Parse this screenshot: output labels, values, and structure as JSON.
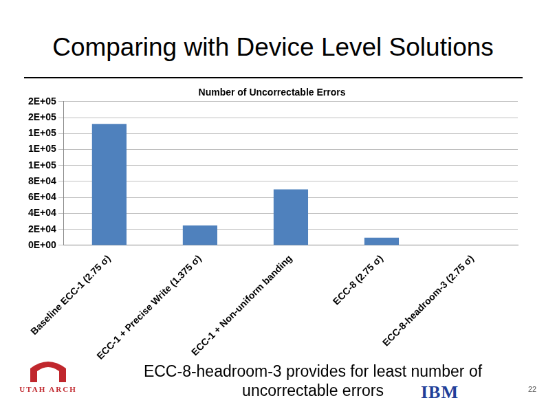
{
  "slide_title": "Comparing with Device Level Solutions",
  "caption": "ECC-8-headroom-3 provides for least number of uncorrectable errors",
  "page_number": "22",
  "logos": [
    "UTAH ARCH",
    "IBM"
  ],
  "chart_data": {
    "type": "bar",
    "title": "Number of Uncorrectable Errors",
    "categories": [
      "Baseline ECC-1 (2.75 σ)",
      "ECC-1 + Precise Write (1.375 σ)",
      "ECC-1 + Non-uniform banding",
      "ECC-8 (2.75 σ)",
      "ECC-8-headroom-3 (2.75 σ)"
    ],
    "values": [
      152000,
      25000,
      70000,
      9600,
      0
    ],
    "color": "#4f81bd",
    "ylim": [
      0,
      180000
    ],
    "yticks": [
      {
        "value": 0,
        "label": "0E+00"
      },
      {
        "value": 20000,
        "label": "2E+04"
      },
      {
        "value": 40000,
        "label": "4E+04"
      },
      {
        "value": 60000,
        "label": "6E+04"
      },
      {
        "value": 80000,
        "label": "8E+04"
      },
      {
        "value": 100000,
        "label": "1E+05"
      },
      {
        "value": 120000,
        "label": "1E+05"
      },
      {
        "value": 140000,
        "label": "1E+05"
      },
      {
        "value": 160000,
        "label": "2E+05"
      },
      {
        "value": 180000,
        "label": "2E+05"
      }
    ],
    "grid": true
  }
}
